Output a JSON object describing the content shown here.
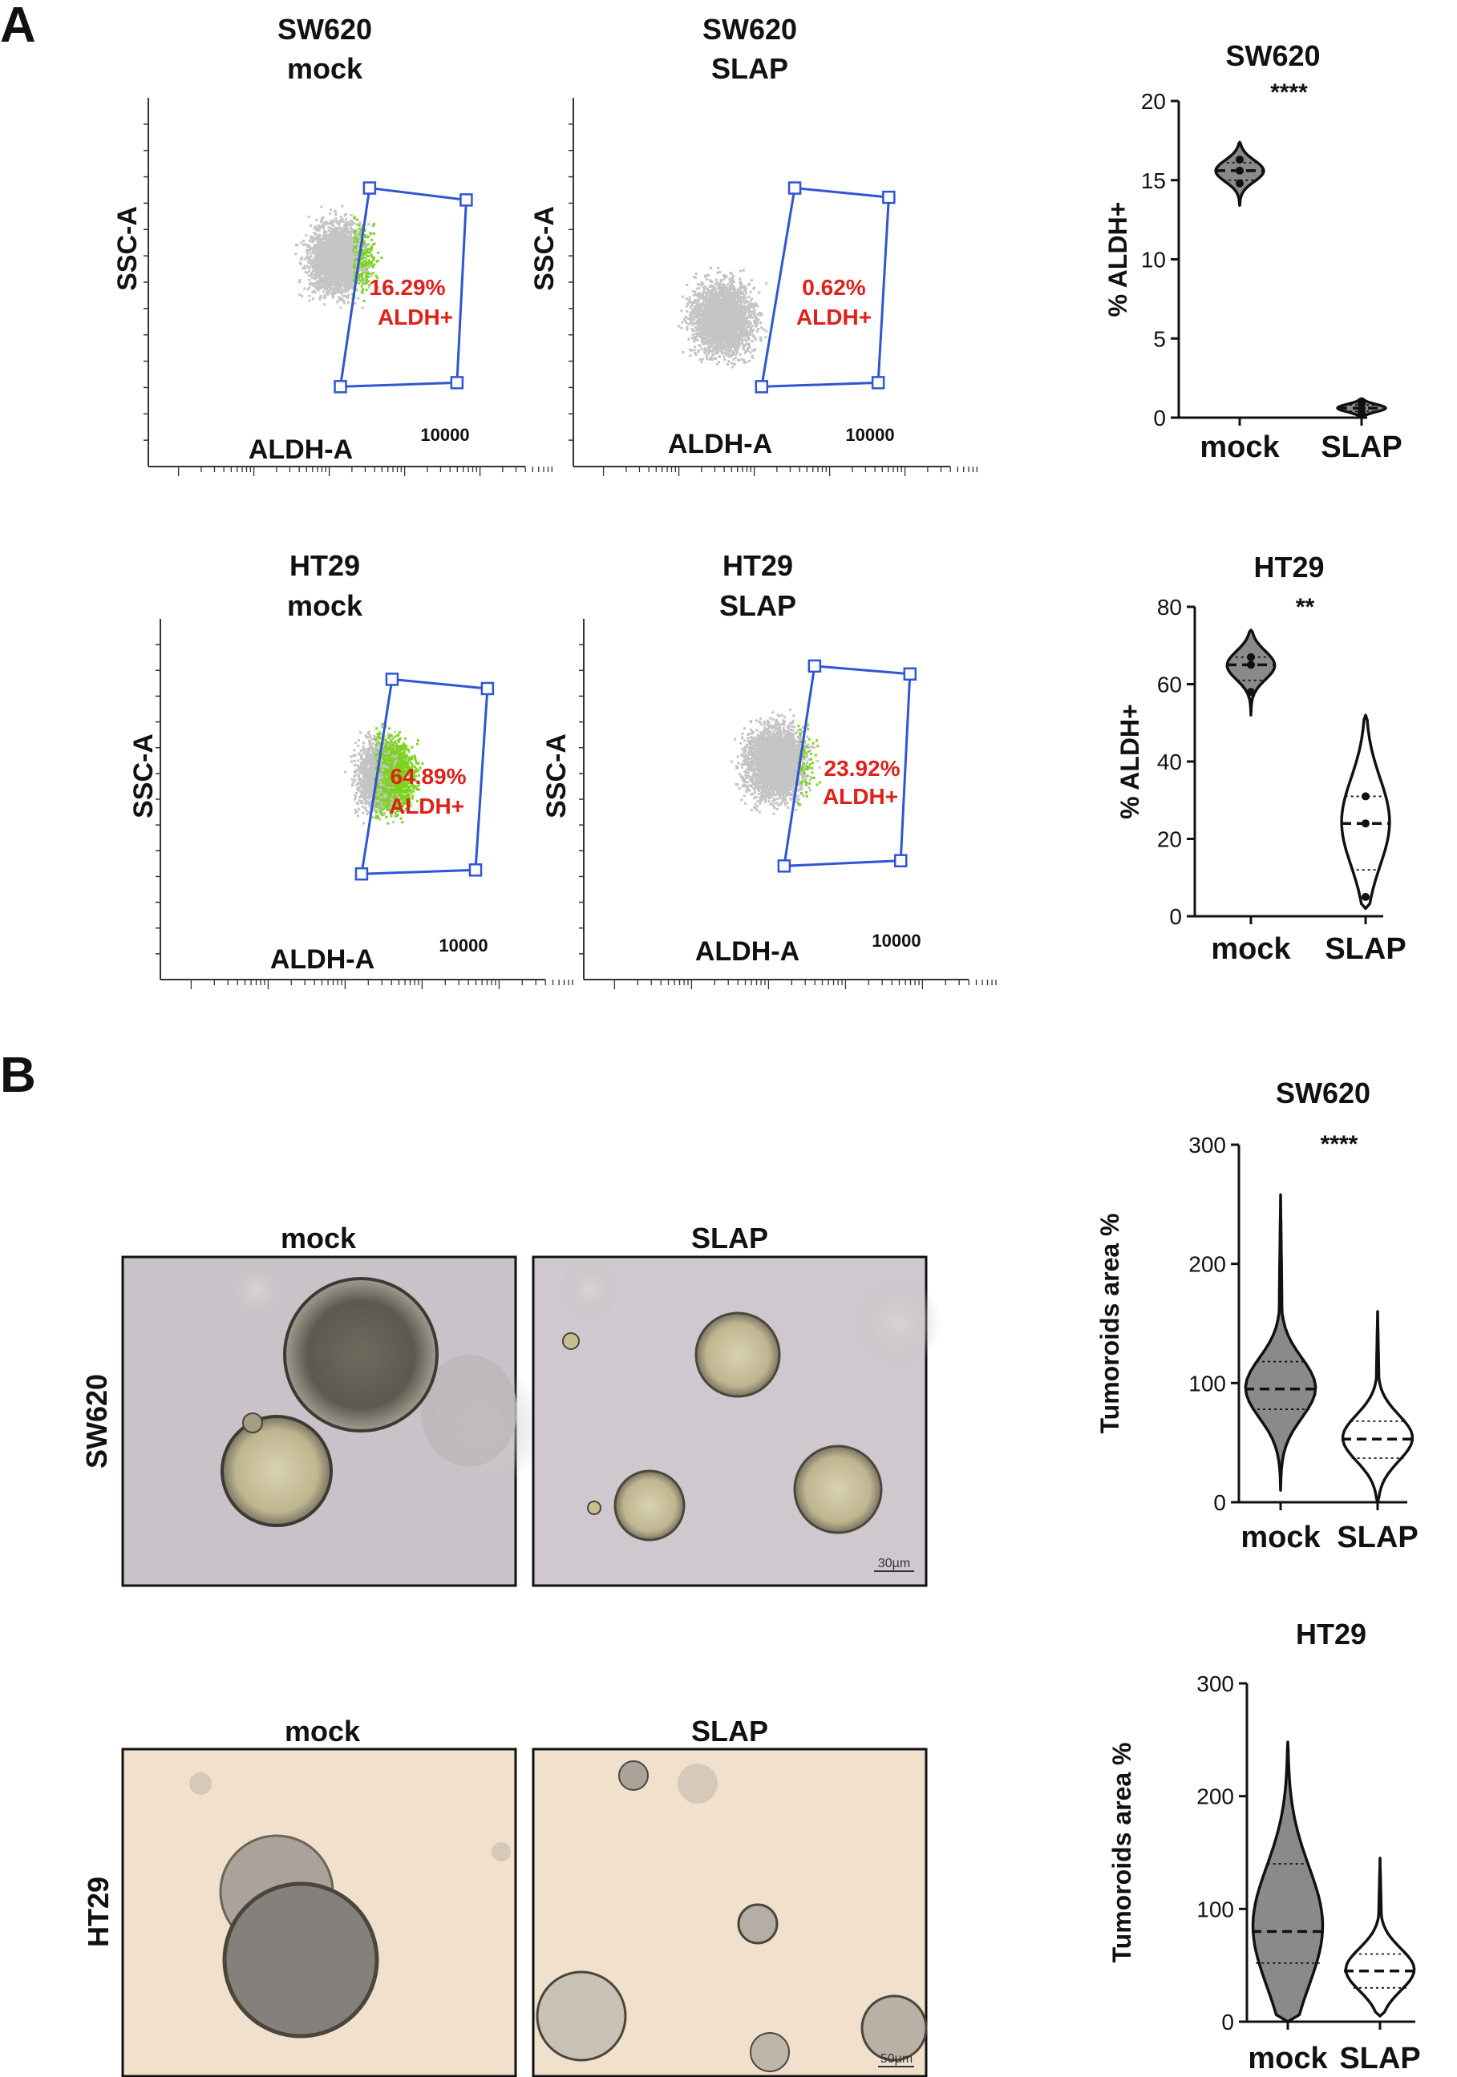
{
  "panels": {
    "a_label": "A",
    "b_label": "B"
  },
  "flow": [
    {
      "title": [
        "SW620",
        "mock"
      ],
      "xlabel": "ALDH-A",
      "ylabel": "SSC-A",
      "xmax_label": "10000",
      "gate_text": [
        "16.29%",
        "ALDH+"
      ]
    },
    {
      "title": [
        "SW620",
        "SLAP"
      ],
      "xlabel": "ALDH-A",
      "ylabel": "SSC-A",
      "xmax_label": "10000",
      "gate_text": [
        "0.62%",
        "ALDH+"
      ]
    },
    {
      "title": [
        "HT29",
        "mock"
      ],
      "xlabel": "ALDH-A",
      "ylabel": "SSC-A",
      "xmax_label": "10000",
      "gate_text": [
        "64.89%",
        "ALDH+"
      ]
    },
    {
      "title": [
        "HT29",
        "SLAP"
      ],
      "xlabel": "ALDH-A",
      "ylabel": "SSC-A",
      "xmax_label": "10000",
      "gate_text": [
        "23.92%",
        "ALDH+"
      ]
    }
  ],
  "micro": {
    "rows": [
      "SW620",
      "HT29"
    ],
    "cols": [
      "mock",
      "SLAP"
    ],
    "scalebars": [
      "30µm",
      "50µm"
    ]
  },
  "chart_data": [
    {
      "type": "violin",
      "title": "SW620",
      "ylabel": "% ALDH+",
      "ylim": [
        0,
        20
      ],
      "yticks": [
        "0",
        "5",
        "10",
        "15",
        "20"
      ],
      "categories": [
        "mock",
        "SLAP"
      ],
      "significance": "****",
      "series": [
        {
          "name": "mock",
          "points": [
            14.8,
            15.6,
            16.3
          ],
          "median": 15.6,
          "q1": 15.0,
          "q3": 16.1,
          "range": [
            13.4,
            17.4
          ],
          "fill": "#8a8a8a"
        },
        {
          "name": "SLAP",
          "points": [
            0.3,
            0.6,
            0.9
          ],
          "median": 0.6,
          "q1": 0.4,
          "q3": 0.8,
          "range": [
            0.1,
            1.2
          ],
          "fill": "#8a8a8a"
        }
      ]
    },
    {
      "type": "violin",
      "title": "HT29",
      "ylabel": "% ALDH+",
      "ylim": [
        0,
        80
      ],
      "yticks": [
        "0",
        "20",
        "40",
        "60",
        "80"
      ],
      "categories": [
        "mock",
        "SLAP"
      ],
      "significance": "**",
      "series": [
        {
          "name": "mock",
          "points": [
            58,
            65,
            67
          ],
          "median": 65,
          "q1": 61,
          "q3": 67,
          "range": [
            52,
            74
          ],
          "fill": "#8a8a8a"
        },
        {
          "name": "SLAP",
          "points": [
            5,
            24,
            31
          ],
          "median": 24,
          "q1": 12,
          "q3": 31,
          "range": [
            2,
            52
          ],
          "fill": "#ffffff"
        }
      ]
    },
    {
      "type": "violin",
      "title": "SW620",
      "ylabel": "Tumoroids area %",
      "ylim": [
        0,
        300
      ],
      "yticks": [
        "0",
        "100",
        "200",
        "300"
      ],
      "categories": [
        "mock",
        "SLAP"
      ],
      "significance": "****",
      "series": [
        {
          "name": "mock",
          "median": 95,
          "q1": 78,
          "q3": 118,
          "range": [
            10,
            258
          ],
          "fill": "#8a8a8a"
        },
        {
          "name": "SLAP",
          "median": 53,
          "q1": 37,
          "q3": 68,
          "range": [
            0,
            160
          ],
          "fill": "#ffffff"
        }
      ]
    },
    {
      "type": "violin",
      "title": "HT29",
      "ylabel": "Tumoroids area %",
      "ylim": [
        0,
        300
      ],
      "yticks": [
        "0",
        "100",
        "200",
        "300"
      ],
      "categories": [
        "mock",
        "SLAP"
      ],
      "significance": "",
      "series": [
        {
          "name": "mock",
          "median": 80,
          "q1": 52,
          "q3": 140,
          "range": [
            0,
            248
          ],
          "fill": "#8a8a8a"
        },
        {
          "name": "SLAP",
          "median": 45,
          "q1": 30,
          "q3": 60,
          "range": [
            5,
            145
          ],
          "fill": "#ffffff"
        }
      ]
    }
  ]
}
